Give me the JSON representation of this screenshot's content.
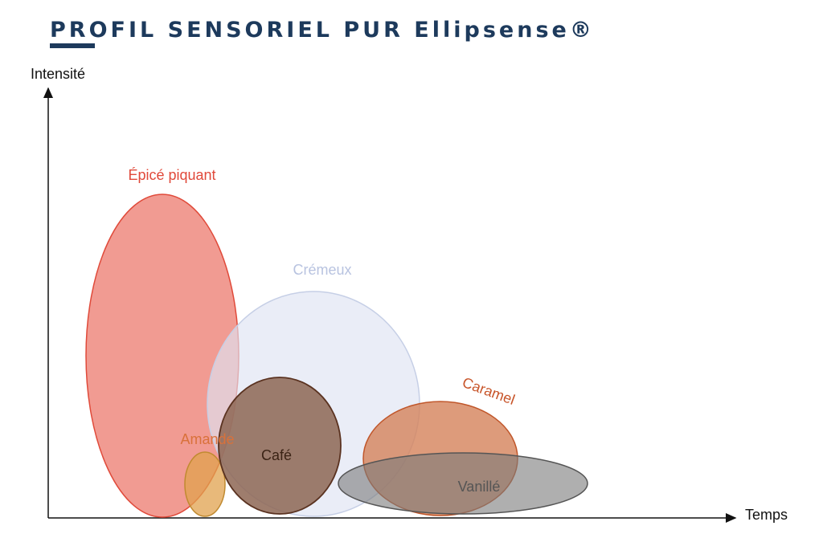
{
  "header": {
    "title": "PROFIL SENSORIEL PUR Ellipsense®"
  },
  "axes": {
    "y_label": "Intensité",
    "x_label": "Temps"
  },
  "ellipses": [
    {
      "label": "Épicé piquant"
    },
    {
      "label": "Crémeux"
    },
    {
      "label": "Amande"
    },
    {
      "label": "Café"
    },
    {
      "label": "Caramel"
    },
    {
      "label": "Vanillé"
    }
  ]
}
